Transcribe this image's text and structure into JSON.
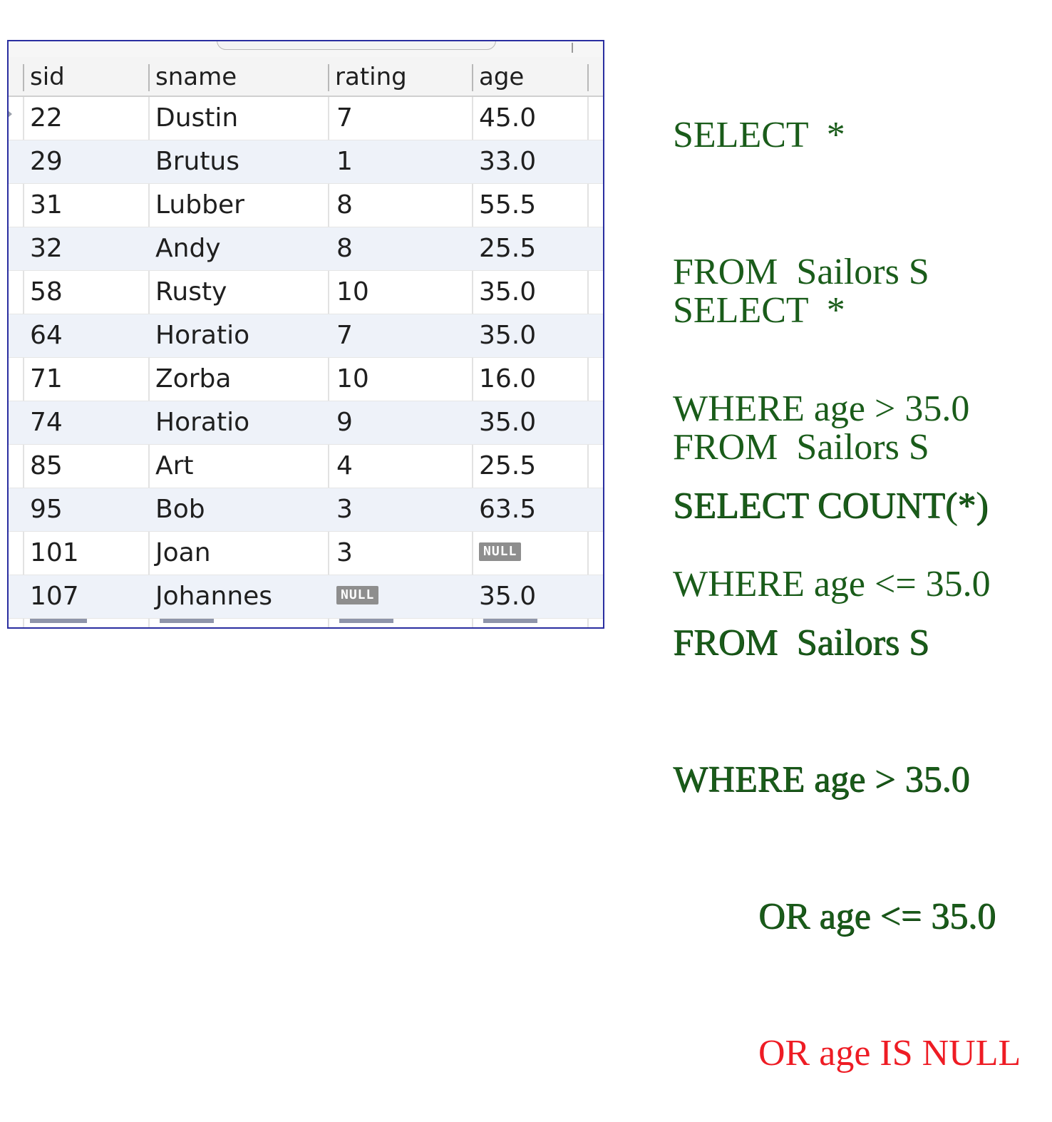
{
  "table": {
    "columns": [
      "sid",
      "sname",
      "rating",
      "age"
    ],
    "null_label": "NULL",
    "rows": [
      [
        "22",
        "Dustin",
        "7",
        "45.0"
      ],
      [
        "29",
        "Brutus",
        "1",
        "33.0"
      ],
      [
        "31",
        "Lubber",
        "8",
        "55.5"
      ],
      [
        "32",
        "Andy",
        "8",
        "25.5"
      ],
      [
        "58",
        "Rusty",
        "10",
        "35.0"
      ],
      [
        "64",
        "Horatio",
        "7",
        "35.0"
      ],
      [
        "71",
        "Zorba",
        "10",
        "16.0"
      ],
      [
        "74",
        "Horatio",
        "9",
        "35.0"
      ],
      [
        "85",
        "Art",
        "4",
        "25.5"
      ],
      [
        "95",
        "Bob",
        "3",
        "63.5"
      ],
      [
        "101",
        "Joan",
        "3",
        null
      ],
      [
        "107",
        "Johannes",
        null,
        "35.0"
      ]
    ]
  },
  "queries": {
    "q1": [
      "SELECT  *",
      "FROM  Sailors S",
      "WHERE age > 35.0"
    ],
    "q2": [
      "SELECT  *",
      "FROM  Sailors S",
      "WHERE age <= 35.0"
    ],
    "q3": [
      "SELECT COUNT(*)",
      "FROM  Sailors S",
      "WHERE age > 35.0",
      "OR age <= 35.0",
      "OR age IS NULL"
    ]
  },
  "colors": {
    "sql_green": "#1a5c1a",
    "sql_red": "#ee1c24",
    "window_border": "#2a2ea0",
    "null_badge": "#8e8e8e"
  }
}
